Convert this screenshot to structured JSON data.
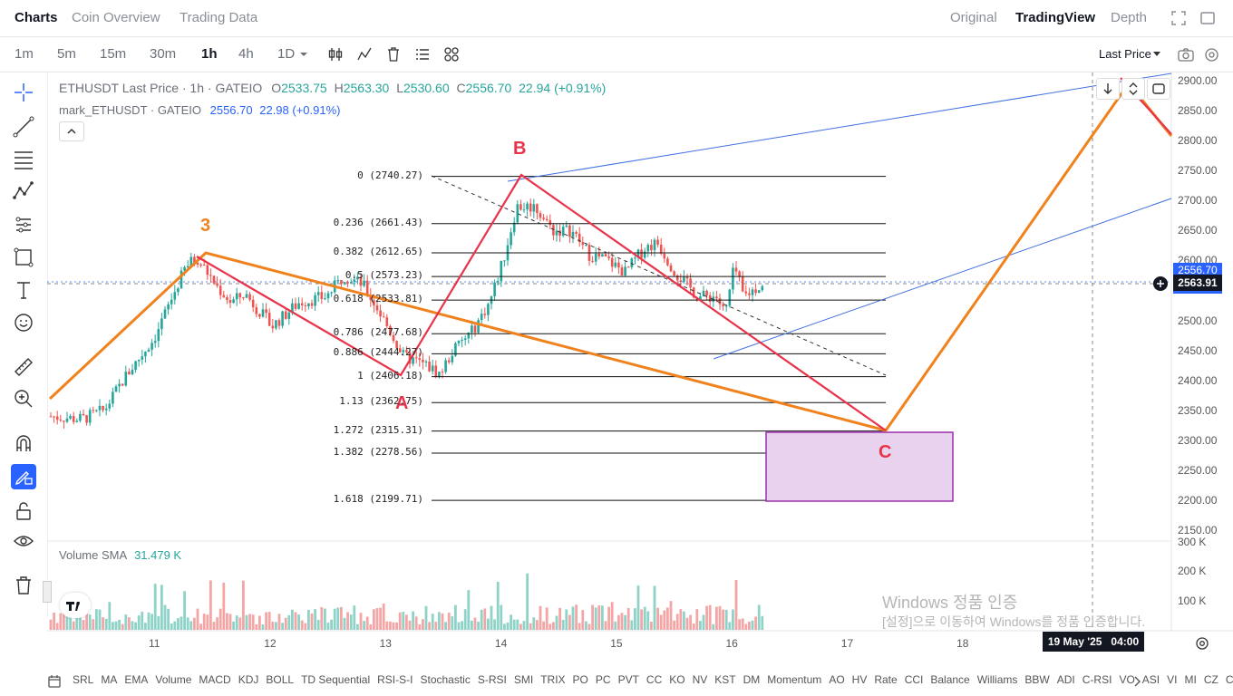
{
  "nav": {
    "tabs": [
      "Charts",
      "Coin Overview",
      "Trading Data"
    ],
    "right_tabs": [
      "Original",
      "TradingView",
      "Depth"
    ]
  },
  "toolbar": {
    "timeframes": [
      "1m",
      "5m",
      "15m",
      "30m",
      "1h",
      "4h",
      "1D"
    ],
    "active_timeframe": "1h",
    "price_type": "Last Price"
  },
  "legend": {
    "symbol_line": "ETHUSDT Last Price · 1h · GATEIO",
    "o_label": "O",
    "o": "2533.75",
    "h_label": "H",
    "h": "2563.30",
    "l_label": "L",
    "l": "2530.60",
    "c_label": "C",
    "c": "2556.70",
    "change": "22.94 (+0.91%)",
    "mark_line": "mark_ETHUSDT · GATEIO",
    "mark_price": "2556.70",
    "mark_change": "22.98 (+0.91%)"
  },
  "yaxis": [
    "2900.00",
    "2850.00",
    "2800.00",
    "2750.00",
    "2700.00",
    "2650.00",
    "2600.00",
    "2550.00",
    "2500.00",
    "2450.00",
    "2400.00",
    "2350.00",
    "2300.00",
    "2250.00",
    "2200.00",
    "2150.00"
  ],
  "price_labels": {
    "mark": "2556.70",
    "crosshair": "2563.91"
  },
  "xaxis": [
    "11",
    "12",
    "13",
    "14",
    "15",
    "16",
    "17",
    "18"
  ],
  "crosshair_time": "19 May '25   04:00",
  "fib_levels": [
    {
      "ratio": "0",
      "price": "2740.27",
      "label": "0 (2740.27)"
    },
    {
      "ratio": "0.236",
      "price": "2661.43",
      "label": "0.236 (2661.43)"
    },
    {
      "ratio": "0.382",
      "price": "2612.65",
      "label": "0.382 (2612.65)"
    },
    {
      "ratio": "0.5",
      "price": "2573.23",
      "label": "0.5 (2573.23)"
    },
    {
      "ratio": "0.618",
      "price": "2533.81",
      "label": "0.618 (2533.81)"
    },
    {
      "ratio": "0.786",
      "price": "2477.68",
      "label": "0.786 (2477.68)"
    },
    {
      "ratio": "0.886",
      "price": "2444.27",
      "label": "0.886 (2444.27)"
    },
    {
      "ratio": "1",
      "price": "2406.18",
      "label": "1 (2406.18)"
    },
    {
      "ratio": "1.13",
      "price": "2362.75",
      "label": "1.13 (2362.75)"
    },
    {
      "ratio": "1.272",
      "price": "2315.31",
      "label": "1.272 (2315.31)"
    },
    {
      "ratio": "1.382",
      "price": "2278.56",
      "label": "1.382 (2278.56)"
    },
    {
      "ratio": "1.618",
      "price": "2199.71",
      "label": "1.618 (2199.71)"
    }
  ],
  "pattern_labels": {
    "a": "A",
    "b": "B",
    "c": "C",
    "three": "3"
  },
  "volume": {
    "label": "Volume SMA",
    "value": "31.479 K",
    "axis": [
      "300 K",
      "200 K",
      "100 K"
    ]
  },
  "indicators": [
    "SRL",
    "MA",
    "EMA",
    "Volume",
    "MACD",
    "KDJ",
    "BOLL",
    "TD Sequential",
    "RSI-S-I",
    "Stochastic",
    "S-RSI",
    "SMI",
    "TRIX",
    "PO",
    "PC",
    "PVT",
    "CC",
    "KO",
    "NV",
    "KST",
    "DM",
    "Momentum",
    "AO",
    "HV",
    "Rate",
    "CCI",
    "Balance",
    "Williams",
    "BBW",
    "ADI",
    "C-RSI",
    "VO",
    "ASI",
    "VI",
    "MI",
    "CZ",
    "CI"
  ],
  "watermark": {
    "line1": "Windows 정품 인증",
    "line2": "[설정]으로 이동하여 Windows를 정품 인증합니다."
  },
  "colors": {
    "up": "#26a69a",
    "down": "#ef5350",
    "abc": "#e8334a",
    "wave": "#f0821e",
    "channel": "#3f6fe0",
    "zone_fill": "#e8d2ee",
    "zone_border": "#9b2fae"
  }
}
